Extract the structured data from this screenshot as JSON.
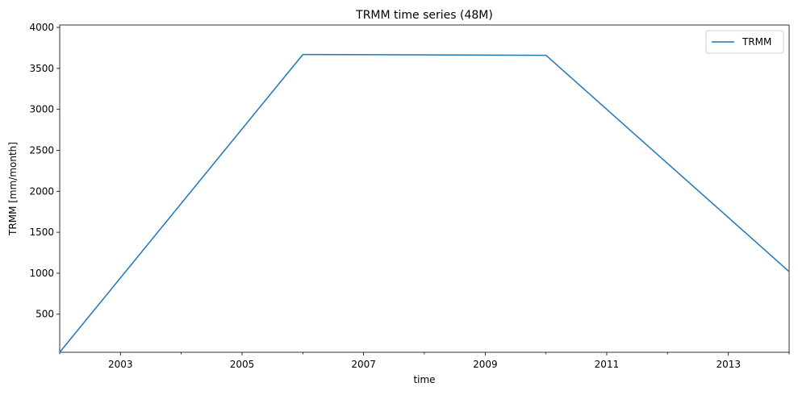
{
  "chart_data": {
    "type": "line",
    "title": "TRMM time series (48M)",
    "xlabel": "time",
    "ylabel": "TRMM [mm/month]",
    "x_scale": "time",
    "xlim": [
      "2002-01-01",
      "2014-01-01"
    ],
    "ylim": [
      35,
      4030
    ],
    "x_ticks": [
      "2003",
      "2005",
      "2007",
      "2009",
      "2011",
      "2013"
    ],
    "y_ticks": [
      500,
      1000,
      1500,
      2000,
      2500,
      3000,
      3500,
      4000
    ],
    "grid": false,
    "legend": {
      "position": "top-right",
      "entries": [
        "TRMM"
      ]
    },
    "series": [
      {
        "name": "TRMM",
        "color": "#1f77b4",
        "x": [
          "2002-01-01",
          "2006-01-01",
          "2010-01-01",
          "2014-01-01"
        ],
        "y": [
          35,
          3670,
          3660,
          1020
        ]
      }
    ]
  }
}
